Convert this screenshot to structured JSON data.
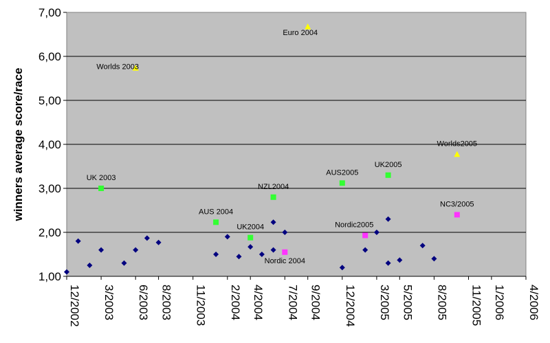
{
  "chart_data": {
    "type": "scatter",
    "title": "",
    "xlabel": "",
    "ylabel": "winners average score/race",
    "ylim": [
      1.0,
      7.0
    ],
    "yticks": [
      "1,00",
      "2,00",
      "3,00",
      "4,00",
      "5,00",
      "6,00",
      "7,00"
    ],
    "xticks": [
      "12/2002",
      "3/2003",
      "6/2003",
      "8/2003",
      "11/2003",
      "2/2004",
      "4/2004",
      "7/2004",
      "9/2004",
      "12/2004",
      "3/2005",
      "5/2005",
      "8/2005",
      "11/2005",
      "1/2006",
      "4/2006"
    ],
    "grid": true,
    "legend": "none",
    "colors": {
      "plot_bg": "#c0c0c0",
      "gridline": "#000000",
      "other": "#00007f",
      "worlds_euro": "#ffff00",
      "national": "#33ff33",
      "nordic_nc": "#ff33ff"
    },
    "series": [
      {
        "marker": "diamond",
        "color": "#00007f",
        "points": [
          {
            "x": "12/2002",
            "y": 1.1
          },
          {
            "x": "1/2003",
            "y": 1.8
          },
          {
            "x": "2/2003",
            "y": 1.25
          },
          {
            "x": "3/2003",
            "y": 1.6
          },
          {
            "x": "5/2003",
            "y": 1.3
          },
          {
            "x": "6/2003",
            "y": 1.6
          },
          {
            "x": "7/2003",
            "y": 1.87
          },
          {
            "x": "8/2003",
            "y": 1.77
          },
          {
            "x": "1/2004",
            "y": 1.5
          },
          {
            "x": "2/2004",
            "y": 1.9
          },
          {
            "x": "3/2004",
            "y": 1.45
          },
          {
            "x": "4/2004",
            "y": 1.67
          },
          {
            "x": "5/2004",
            "y": 1.5
          },
          {
            "x": "6/2004",
            "y": 1.6
          },
          {
            "x": "6/2004",
            "y": 2.23
          },
          {
            "x": "7/2004",
            "y": 2.0
          },
          {
            "x": "12/2004",
            "y": 1.2
          },
          {
            "x": "2/2005",
            "y": 1.6
          },
          {
            "x": "3/2005",
            "y": 2.0
          },
          {
            "x": "4/2005",
            "y": 2.3
          },
          {
            "x": "4/2005",
            "y": 1.3
          },
          {
            "x": "5/2005",
            "y": 1.37
          },
          {
            "x": "7/2005",
            "y": 1.7
          },
          {
            "x": "8/2005",
            "y": 1.4
          }
        ]
      },
      {
        "marker": "triangle",
        "color": "#ffff00",
        "points": [
          {
            "x": "6/2003",
            "y": 5.73,
            "label": "Worlds 2003"
          },
          {
            "x": "9/2004",
            "y": 6.67,
            "label": "Euro 2004"
          },
          {
            "x": "10/2005",
            "y": 3.77,
            "label": "Worlds2005"
          }
        ]
      },
      {
        "marker": "square",
        "color": "#33ff33",
        "points": [
          {
            "x": "3/2003",
            "y": 3.0,
            "label": "UK 2003"
          },
          {
            "x": "1/2004",
            "y": 2.23,
            "label": "AUS 2004"
          },
          {
            "x": "4/2004",
            "y": 1.88,
            "label": "UK2004"
          },
          {
            "x": "6/2004",
            "y": 2.8,
            "label": "NZL2004"
          },
          {
            "x": "12/2004",
            "y": 3.12,
            "label": "AUS2005"
          },
          {
            "x": "4/2005",
            "y": 3.3,
            "label": "UK2005"
          }
        ]
      },
      {
        "marker": "square",
        "color": "#ff33ff",
        "points": [
          {
            "x": "7/2004",
            "y": 1.55,
            "label": "Nordic 2004"
          },
          {
            "x": "2/2005",
            "y": 1.93,
            "label": "Nordic2005"
          },
          {
            "x": "10/2005",
            "y": 2.4,
            "label": "NC3/2005"
          }
        ]
      }
    ]
  }
}
